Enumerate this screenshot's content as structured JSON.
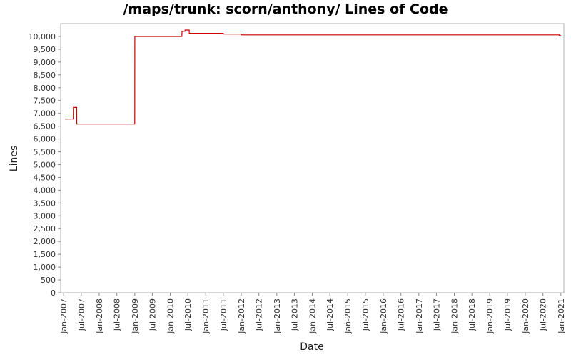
{
  "chart_data": {
    "type": "line",
    "title": "/maps/trunk: scorn/anthony/ Lines of Code",
    "xlabel": "Date",
    "ylabel": "Lines",
    "ylim": [
      0,
      10500
    ],
    "xlim": [
      "2006-12-01",
      "2021-02-01"
    ],
    "grid": false,
    "legend": "none",
    "line_color": "#cc0000",
    "x_ticks": [
      "Jan-2007",
      "Jul-2007",
      "Jan-2008",
      "Jul-2008",
      "Jan-2009",
      "Jul-2009",
      "Jan-2010",
      "Jul-2010",
      "Jan-2011",
      "Jul-2011",
      "Jan-2012",
      "Jul-2012",
      "Jan-2013",
      "Jul-2013",
      "Jan-2014",
      "Jul-2014",
      "Jan-2015",
      "Jul-2015",
      "Jan-2016",
      "Jul-2016",
      "Jan-2017",
      "Jul-2017",
      "Jan-2018",
      "Jul-2018",
      "Jan-2019",
      "Jul-2019",
      "Jan-2020",
      "Jul-2020",
      "Jan-2021"
    ],
    "y_ticks": [
      "0",
      "500",
      "1,000",
      "1,500",
      "2,000",
      "2,500",
      "3,000",
      "3,500",
      "4,000",
      "4,500",
      "5,000",
      "5,500",
      "6,000",
      "6,500",
      "7,000",
      "7,500",
      "8,000",
      "8,500",
      "9,000",
      "9,500",
      "10,000"
    ],
    "series": [
      {
        "x": [
          "2007-01-15",
          "2007-04-10",
          "2007-04-11",
          "2007-05-15",
          "2007-05-16",
          "2009-01-01",
          "2009-01-02",
          "2010-05-01",
          "2010-05-02",
          "2010-06-01",
          "2010-06-02",
          "2010-07-15",
          "2010-07-16",
          "2011-07-01",
          "2011-07-02",
          "2012-01-01",
          "2012-01-02",
          "2020-12-15",
          "2020-12-16",
          "2021-01-01"
        ],
        "y": [
          6780,
          6780,
          7230,
          7230,
          6580,
          6580,
          10000,
          10000,
          10200,
          10200,
          10250,
          10250,
          10120,
          10120,
          10090,
          10090,
          10060,
          10060,
          10040,
          10040
        ]
      }
    ]
  }
}
